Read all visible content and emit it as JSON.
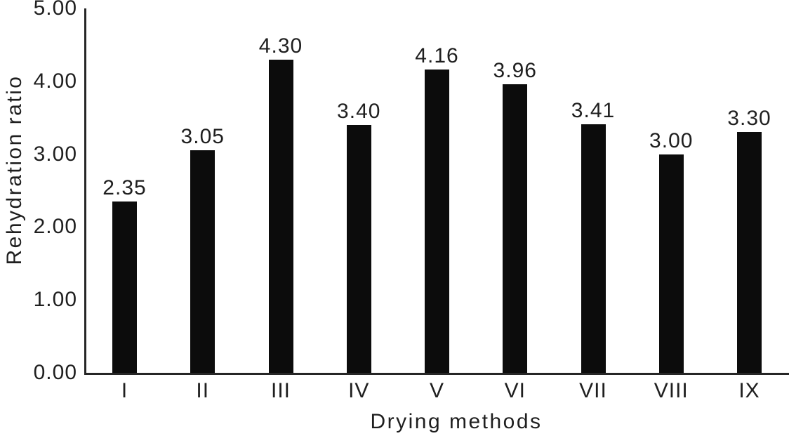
{
  "figure": {
    "background": "#ffffff",
    "bar_color": "#0c0c0c",
    "axis_color": "#262626",
    "text_color": "#1f1f1f"
  },
  "chart_data": {
    "type": "bar",
    "title": "",
    "categories": [
      "I",
      "II",
      "III",
      "IV",
      "V",
      "VI",
      "VII",
      "VIII",
      "IX"
    ],
    "values": [
      2.35,
      3.05,
      4.3,
      3.4,
      4.16,
      3.96,
      3.41,
      3.0,
      3.3
    ],
    "value_labels": [
      "2.35",
      "3.05",
      "4.30",
      "3.40",
      "4.16",
      "3.96",
      "3.41",
      "3.00",
      "3.30"
    ],
    "xlabel": "Drying methods",
    "ylabel": "Rehydration ratio",
    "ylim": [
      0,
      5
    ],
    "yticks": [
      {
        "value": 0,
        "label": "0.00"
      },
      {
        "value": 1,
        "label": "1.00"
      },
      {
        "value": 2,
        "label": "2.00"
      },
      {
        "value": 3,
        "label": "3.00"
      },
      {
        "value": 4,
        "label": "4.00"
      },
      {
        "value": 5,
        "label": "5.00"
      }
    ],
    "grid": false,
    "legend": "none"
  }
}
